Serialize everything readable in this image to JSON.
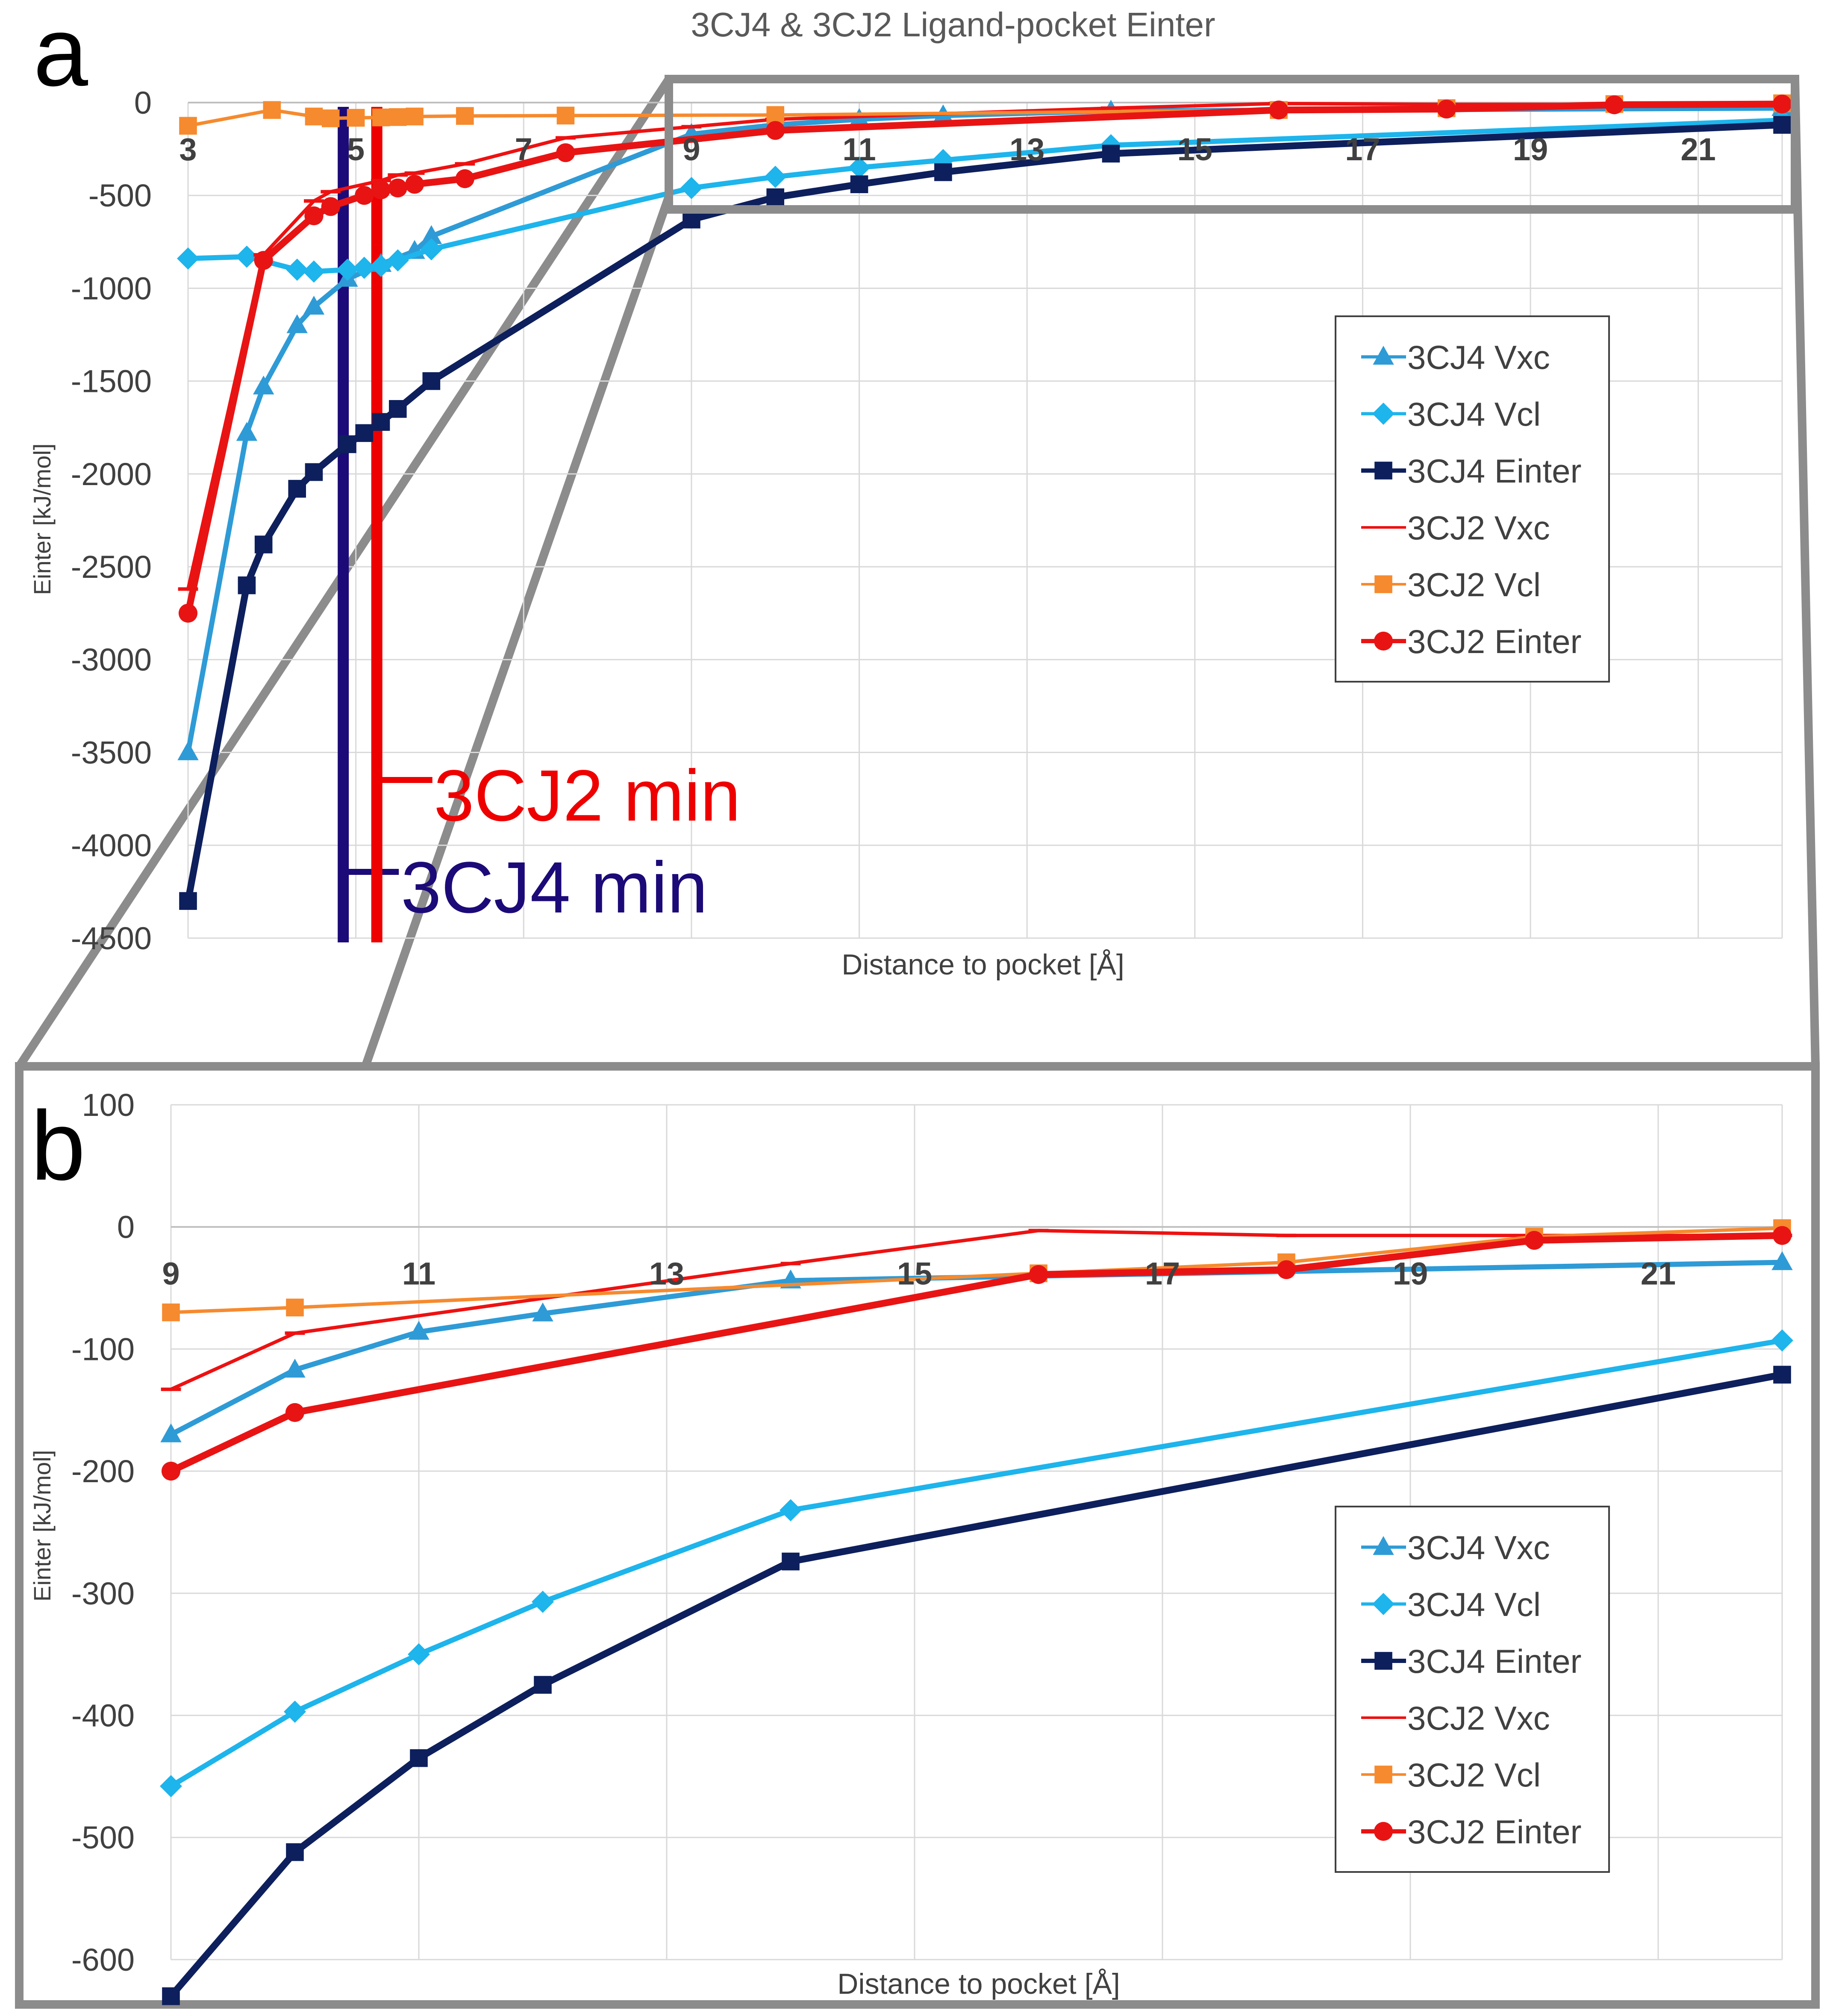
{
  "figure": {
    "title": "3CJ4 & 3CJ2 Ligand-pocket Einter",
    "panel_a_letter": "a",
    "panel_b_letter": "b",
    "annotation_3cj2": "3CJ2 min",
    "annotation_3cj4": "3CJ4 min",
    "color_3cj2_marker": "#ee0000",
    "color_3cj4_marker": "#1c0a78",
    "zoom_frame_color": "#8c8c8c"
  },
  "chart_data": [
    {
      "panel": "a",
      "type": "line",
      "title": "3CJ4 & 3CJ2 Ligand-pocket Einter",
      "xlabel": "Distance to pocket [Å]",
      "ylabel": "Einter [kJ/mol]",
      "xlim": [
        3,
        22
      ],
      "ylim": [
        -4500,
        0
      ],
      "x_ticks": [
        "3",
        "5",
        "7",
        "9",
        "11",
        "13",
        "15",
        "17",
        "19",
        "21"
      ],
      "y_ticks": [
        "0",
        "-500",
        "-1000",
        "-1500",
        "-2000",
        "-2500",
        "-3000",
        "-3500",
        "-4000",
        "-4500"
      ],
      "grid": true,
      "legend_position": "right",
      "vertical_markers": [
        {
          "label": "3CJ4 min",
          "x": 4.85
        },
        {
          "label": "3CJ2 min",
          "x": 5.25
        }
      ],
      "series": [
        {
          "name": "3CJ4 Vxc",
          "color": "#2e9bd6",
          "marker": "triangle",
          "width": 3,
          "x": [
            3.0,
            3.7,
            3.9,
            4.3,
            4.5,
            4.9,
            5.3,
            5.7,
            5.9,
            9.0,
            10.0,
            11.0,
            12.0,
            14.0,
            22.0
          ],
          "y": [
            -3500,
            -1780,
            -1530,
            -1200,
            -1100,
            -950,
            -870,
            -800,
            -720,
            -170,
            -120,
            -90,
            -70,
            -45,
            -30
          ]
        },
        {
          "name": "3CJ4 Vcl",
          "color": "#1eb4ec",
          "marker": "diamond",
          "width": 3,
          "x": [
            3.0,
            3.7,
            4.3,
            4.5,
            4.9,
            5.1,
            5.3,
            5.5,
            5.9,
            9.0,
            10.0,
            11.0,
            12.0,
            14.0,
            22.0
          ],
          "y": [
            -840,
            -830,
            -900,
            -910,
            -900,
            -890,
            -880,
            -850,
            -790,
            -460,
            -400,
            -350,
            -310,
            -230,
            -95
          ]
        },
        {
          "name": "3CJ4 Einter",
          "color": "#0d1f5c",
          "marker": "square",
          "width": 4,
          "x": [
            3.0,
            3.7,
            3.9,
            4.3,
            4.5,
            4.9,
            5.1,
            5.3,
            5.5,
            5.9,
            9.0,
            10.0,
            11.0,
            12.0,
            14.0,
            22.0
          ],
          "y": [
            -4300,
            -2600,
            -2380,
            -2080,
            -1990,
            -1840,
            -1780,
            -1720,
            -1650,
            -1500,
            -630,
            -510,
            -440,
            -375,
            -275,
            -120
          ]
        },
        {
          "name": "3CJ2 Vxc",
          "color": "#ee1111",
          "marker": "dash",
          "width": 2,
          "x": [
            3.0,
            3.9,
            4.5,
            4.7,
            5.3,
            5.5,
            5.7,
            6.3,
            7.5,
            9.0,
            10.0,
            14.0,
            16.0,
            18.0,
            22.0
          ],
          "y": [
            -2620,
            -820,
            -530,
            -480,
            -420,
            -390,
            -380,
            -330,
            -190,
            -130,
            -90,
            -30,
            -5,
            -10,
            -10
          ]
        },
        {
          "name": "3CJ2 Vcl",
          "color": "#f68a2e",
          "marker": "square",
          "width": 2,
          "x": [
            3.0,
            4.0,
            4.5,
            4.7,
            5.0,
            5.3,
            5.5,
            5.7,
            6.3,
            7.5,
            10.0,
            16.0,
            18.0,
            20.0,
            22.0
          ],
          "y": [
            -125,
            -40,
            -75,
            -85,
            -82,
            -80,
            -78,
            -75,
            -72,
            -70,
            -67,
            -40,
            -30,
            -8,
            -4
          ]
        },
        {
          "name": "3CJ2 Einter",
          "color": "#e81414",
          "marker": "circle",
          "width": 4,
          "x": [
            3.0,
            3.9,
            4.5,
            4.7,
            5.1,
            5.3,
            5.5,
            5.7,
            6.3,
            7.5,
            10.0,
            16.0,
            18.0,
            20.0,
            22.0
          ],
          "y": [
            -2750,
            -850,
            -610,
            -560,
            -500,
            -470,
            -460,
            -440,
            -410,
            -270,
            -150,
            -40,
            -35,
            -12,
            -8
          ]
        }
      ]
    },
    {
      "panel": "b",
      "type": "line",
      "xlabel": "Distance to pocket [Å]",
      "ylabel": "Einter [kJ/mol]",
      "xlim": [
        9,
        22
      ],
      "ylim": [
        -600,
        100
      ],
      "x_ticks": [
        "9",
        "11",
        "13",
        "15",
        "17",
        "19",
        "21"
      ],
      "y_ticks": [
        "100",
        "0",
        "-100",
        "-200",
        "-300",
        "-400",
        "-500",
        "-600"
      ],
      "grid": true,
      "legend_position": "bottom-right",
      "series": [
        {
          "name": "3CJ4 Vxc",
          "color": "#2e9bd6",
          "marker": "triangle",
          "width": 3,
          "x": [
            9.0,
            10.0,
            11.0,
            12.0,
            14.0,
            22.0
          ],
          "y": [
            -170,
            -117,
            -86,
            -71,
            -44,
            -29
          ]
        },
        {
          "name": "3CJ4 Vcl",
          "color": "#1eb4ec",
          "marker": "diamond",
          "width": 3,
          "x": [
            9.0,
            10.0,
            11.0,
            12.0,
            14.0,
            22.0
          ],
          "y": [
            -458,
            -397,
            -350,
            -307,
            -232,
            -93
          ]
        },
        {
          "name": "3CJ4 Einter",
          "color": "#0d1f5c",
          "marker": "square",
          "width": 4,
          "x": [
            9.0,
            10.0,
            11.0,
            12.0,
            14.0,
            22.0
          ],
          "y": [
            -630,
            -512,
            -435,
            -375,
            -274,
            -121
          ]
        },
        {
          "name": "3CJ2 Vxc",
          "color": "#ee1111",
          "marker": "dash",
          "width": 2,
          "x": [
            9.0,
            10.0,
            14.0,
            16.0,
            18.0,
            22.0
          ],
          "y": [
            -133,
            -87,
            -30,
            -3,
            -7,
            -7
          ]
        },
        {
          "name": "3CJ2 Vcl",
          "color": "#f68a2e",
          "marker": "square",
          "width": 2,
          "x": [
            9.0,
            10.0,
            16.0,
            18.0,
            20.0,
            22.0
          ],
          "y": [
            -70,
            -66,
            -38,
            -29,
            -8,
            -1
          ]
        },
        {
          "name": "3CJ2 Einter",
          "color": "#e81414",
          "marker": "circle",
          "width": 4,
          "x": [
            9.0,
            10.0,
            16.0,
            18.0,
            20.0,
            22.0
          ],
          "y": [
            -200,
            -152,
            -39,
            -35,
            -11,
            -7
          ]
        }
      ]
    }
  ]
}
